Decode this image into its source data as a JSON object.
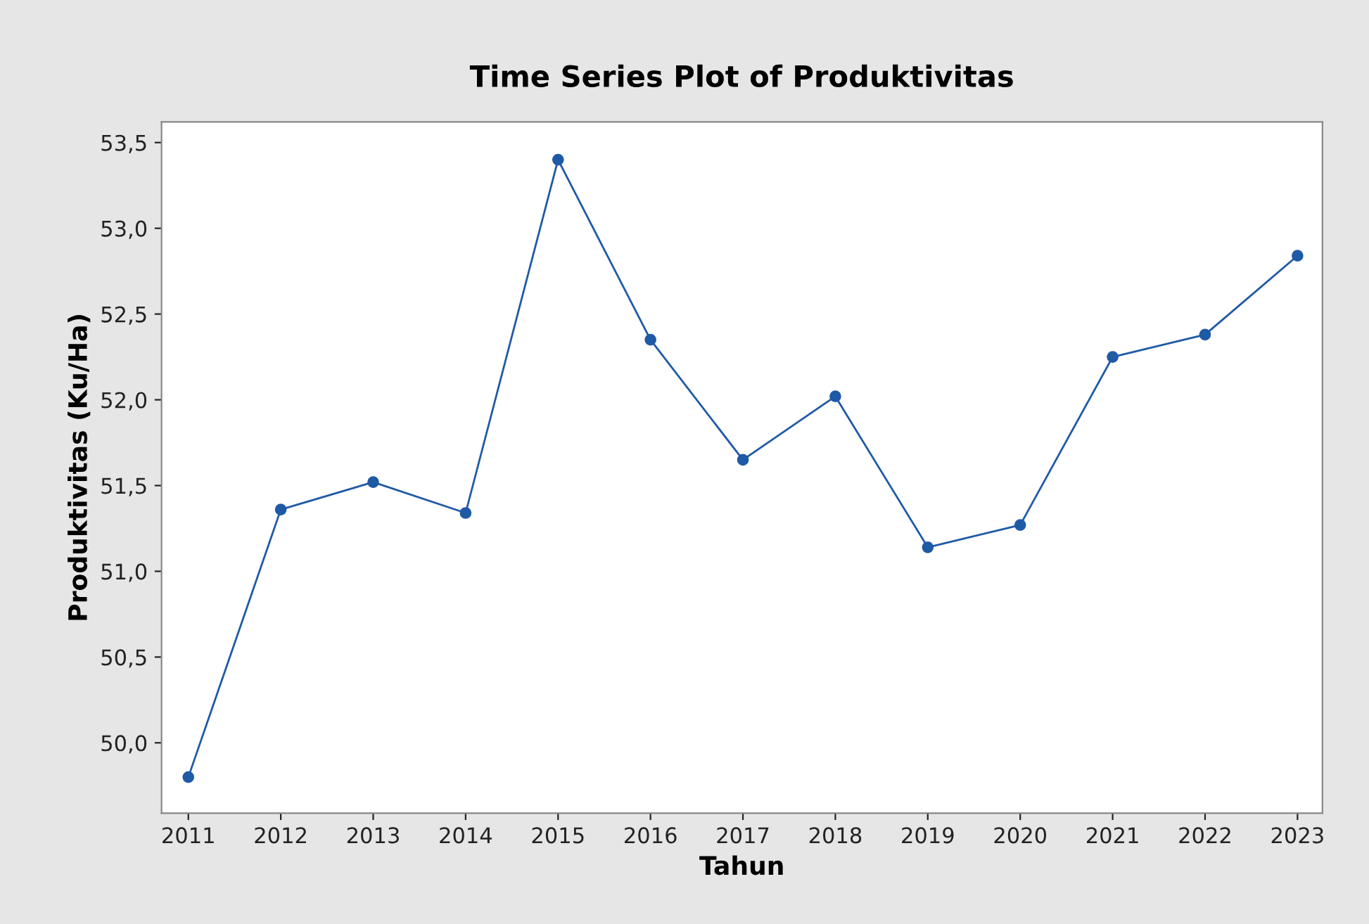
{
  "chart_data": {
    "type": "line",
    "title": "Time Series Plot of Produktivitas",
    "xlabel": "Tahun",
    "ylabel": "Produktivitas (Ku/Ha)",
    "x": [
      2011,
      2012,
      2013,
      2014,
      2015,
      2016,
      2017,
      2018,
      2019,
      2020,
      2021,
      2022,
      2023
    ],
    "series": [
      {
        "color": "#1f5aa6",
        "values": [
          49.8,
          51.36,
          51.52,
          51.34,
          53.4,
          52.35,
          51.65,
          52.02,
          51.14,
          51.27,
          52.25,
          52.38,
          52.84
        ]
      }
    ],
    "xlim": [
      2010.71,
      2023.27
    ],
    "xticks": [
      2011,
      2012,
      2013,
      2014,
      2015,
      2016,
      2017,
      2018,
      2019,
      2020,
      2021,
      2022,
      2023
    ],
    "ylim": [
      49.59,
      53.62
    ],
    "yticks": [
      {
        "value": 50.0,
        "label": "50,0"
      },
      {
        "value": 50.5,
        "label": "50,5"
      },
      {
        "value": 51.0,
        "label": "51,0"
      },
      {
        "value": 51.5,
        "label": "51,5"
      },
      {
        "value": 52.0,
        "label": "52,0"
      },
      {
        "value": 52.5,
        "label": "52,5"
      },
      {
        "value": 53.0,
        "label": "53,0"
      },
      {
        "value": 53.5,
        "label": "53,5"
      }
    ],
    "marker": "circle",
    "line_style": "solid",
    "grid": false,
    "legend": false
  }
}
